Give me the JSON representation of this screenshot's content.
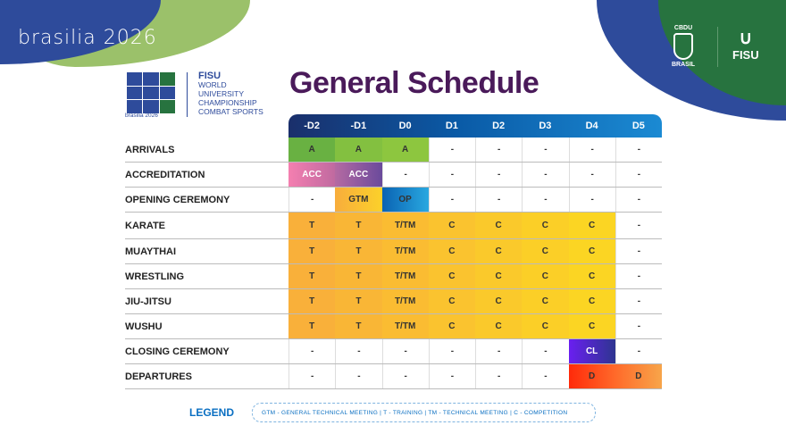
{
  "branding": {
    "event_logo": "brasilia 2026",
    "event_year": "2026",
    "small_logo_caption": "brasilia 2026",
    "fisu": "FISU",
    "fisu_lines": [
      "WORLD",
      "UNIVERSITY",
      "CHAMPIONSHIP",
      "COMBAT SPORTS"
    ],
    "partner_cbdu": "CBDU",
    "partner_brasil": "BRASIL",
    "partner_fisu": "FISU"
  },
  "title": "General Schedule",
  "columns": [
    "-D2",
    "-D1",
    "D0",
    "D1",
    "D2",
    "D3",
    "D4",
    "D5"
  ],
  "rows": [
    {
      "label": "ARRIVALS",
      "cells": [
        "A",
        "A",
        "A",
        "-",
        "-",
        "-",
        "-",
        "-"
      ],
      "types": [
        "arr",
        "arr",
        "arr",
        "",
        "",
        "",
        "",
        ""
      ]
    },
    {
      "label": "ACCREDITATION",
      "cells": [
        "ACC",
        "ACC",
        "-",
        "-",
        "-",
        "-",
        "-",
        "-"
      ],
      "types": [
        "acc",
        "acc",
        "",
        "",
        "",
        "",
        "",
        ""
      ]
    },
    {
      "label": "OPENING CEREMONY",
      "cells": [
        "-",
        "GTM",
        "OP",
        "-",
        "-",
        "-",
        "-",
        "-"
      ],
      "types": [
        "",
        "gtm",
        "op",
        "",
        "",
        "",
        "",
        ""
      ]
    },
    {
      "label": "KARATE",
      "cells": [
        "T",
        "T",
        "T/TM",
        "C",
        "C",
        "C",
        "C",
        "-"
      ],
      "types": [
        "sp",
        "sp",
        "sp",
        "sp",
        "sp",
        "sp",
        "sp",
        ""
      ]
    },
    {
      "label": "MUAYTHAI",
      "cells": [
        "T",
        "T",
        "T/TM",
        "C",
        "C",
        "C",
        "C",
        "-"
      ],
      "types": [
        "sp",
        "sp",
        "sp",
        "sp",
        "sp",
        "sp",
        "sp",
        ""
      ]
    },
    {
      "label": "WRESTLING",
      "cells": [
        "T",
        "T",
        "T/TM",
        "C",
        "C",
        "C",
        "C",
        "-"
      ],
      "types": [
        "sp",
        "sp",
        "sp",
        "sp",
        "sp",
        "sp",
        "sp",
        ""
      ]
    },
    {
      "label": "JIU-JITSU",
      "cells": [
        "T",
        "T",
        "T/TM",
        "C",
        "C",
        "C",
        "C",
        "-"
      ],
      "types": [
        "sp",
        "sp",
        "sp",
        "sp",
        "sp",
        "sp",
        "sp",
        ""
      ]
    },
    {
      "label": "WUSHU",
      "cells": [
        "T",
        "T",
        "T/TM",
        "C",
        "C",
        "C",
        "C",
        "-"
      ],
      "types": [
        "sp",
        "sp",
        "sp",
        "sp",
        "sp",
        "sp",
        "sp",
        ""
      ]
    },
    {
      "label": "CLOSING CEREMONY",
      "cells": [
        "-",
        "-",
        "-",
        "-",
        "-",
        "-",
        "CL",
        "-"
      ],
      "types": [
        "",
        "",
        "",
        "",
        "",
        "",
        "cl",
        ""
      ]
    },
    {
      "label": "DEPARTURES",
      "cells": [
        "-",
        "-",
        "-",
        "-",
        "-",
        "-",
        "D",
        "D"
      ],
      "types": [
        "",
        "",
        "",
        "",
        "",
        "",
        "dep1",
        "dep2"
      ]
    }
  ],
  "legend": {
    "label": "LEGEND",
    "text": "GTM - GENERAL TECHNICAL MEETING | T - TRAINING | TM - TECHNICAL MEETING | C - COMPETITION"
  }
}
